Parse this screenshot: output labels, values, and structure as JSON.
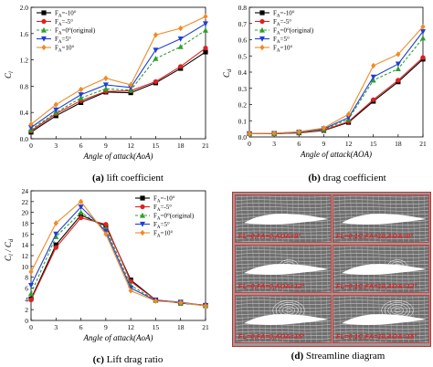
{
  "chart_data": [
    {
      "id": "a",
      "type": "line",
      "caption_letter": "(a)",
      "caption_text": " lift coefficient",
      "xlabel": "Angle of attack(AoA)",
      "ylabel": "Cl",
      "x": [
        0,
        3,
        6,
        9,
        12,
        15,
        18,
        21
      ],
      "xlim": [
        0,
        21
      ],
      "ylim": [
        0,
        2.0
      ],
      "yticks": [
        "0.0",
        "0.4",
        "0.8",
        "1.2",
        "1.6",
        "2.0"
      ],
      "yticks_values": [
        0,
        0.4,
        0.8,
        1.2,
        1.6,
        2.0
      ],
      "series": [
        {
          "name": "FA=-10°",
          "color": "#000000",
          "dash": false,
          "marker": "square",
          "values": [
            0.1,
            0.35,
            0.55,
            0.71,
            0.7,
            0.85,
            1.07,
            1.32
          ]
        },
        {
          "name": "FA=-5°",
          "color": "#e02020",
          "dash": false,
          "marker": "circle",
          "values": [
            0.12,
            0.38,
            0.58,
            0.72,
            0.73,
            0.87,
            1.1,
            1.38
          ]
        },
        {
          "name": "FA=0°(original)",
          "color": "#2ca02c",
          "dash": true,
          "marker": "triangle",
          "values": [
            0.14,
            0.4,
            0.62,
            0.76,
            0.74,
            1.22,
            1.4,
            1.65
          ]
        },
        {
          "name": "FA=5°",
          "color": "#1f3fd6",
          "dash": false,
          "marker": "triangle-down",
          "values": [
            0.17,
            0.44,
            0.67,
            0.82,
            0.78,
            1.35,
            1.52,
            1.75
          ]
        },
        {
          "name": "FA=10°",
          "color": "#f08a24",
          "dash": false,
          "marker": "diamond",
          "values": [
            0.22,
            0.52,
            0.75,
            0.92,
            0.82,
            1.58,
            1.68,
            1.86
          ]
        }
      ]
    },
    {
      "id": "b",
      "type": "line",
      "caption_letter": "(b)",
      "caption_text": " drag coefficient",
      "xlabel": "Angle of attack(AOA)",
      "ylabel": "Cd",
      "x": [
        0,
        3,
        6,
        9,
        12,
        15,
        18,
        21
      ],
      "xlim": [
        0,
        21
      ],
      "ylim": [
        0,
        0.8
      ],
      "yticks": [
        "0.0",
        "0.1",
        "0.2",
        "0.3",
        "0.4",
        "0.5",
        "0.6",
        "0.7",
        "0.8"
      ],
      "yticks_values": [
        0,
        0.1,
        0.2,
        0.3,
        0.4,
        0.5,
        0.6,
        0.7,
        0.8
      ],
      "series": [
        {
          "name": "FA=-10°",
          "color": "#000000",
          "dash": false,
          "marker": "square",
          "values": [
            0.02,
            0.02,
            0.025,
            0.04,
            0.09,
            0.22,
            0.34,
            0.48
          ]
        },
        {
          "name": "FA=-5°",
          "color": "#e02020",
          "dash": false,
          "marker": "circle",
          "values": [
            0.02,
            0.02,
            0.026,
            0.042,
            0.095,
            0.23,
            0.35,
            0.49
          ]
        },
        {
          "name": "FA=0°(original)",
          "color": "#2ca02c",
          "dash": true,
          "marker": "triangle",
          "values": [
            0.02,
            0.021,
            0.028,
            0.045,
            0.11,
            0.35,
            0.42,
            0.61
          ]
        },
        {
          "name": "FA=5°",
          "color": "#1f3fd6",
          "dash": false,
          "marker": "triangle-down",
          "values": [
            0.02,
            0.022,
            0.03,
            0.05,
            0.12,
            0.37,
            0.45,
            0.65
          ]
        },
        {
          "name": "FA=10°",
          "color": "#f08a24",
          "dash": false,
          "marker": "diamond",
          "values": [
            0.021,
            0.023,
            0.032,
            0.055,
            0.14,
            0.44,
            0.51,
            0.68
          ]
        }
      ]
    },
    {
      "id": "c",
      "type": "line",
      "caption_letter": "(c)",
      "caption_text": " Lift drag ratio",
      "xlabel": "Angle of attack(AoA)",
      "ylabel": "Cl / Cd",
      "x": [
        0,
        3,
        6,
        9,
        12,
        15,
        18,
        21
      ],
      "xlim": [
        0,
        21
      ],
      "ylim": [
        0,
        24
      ],
      "yticks": [
        "0",
        "2",
        "4",
        "6",
        "8",
        "10",
        "12",
        "14",
        "16",
        "18",
        "20",
        "22",
        "24"
      ],
      "yticks_values": [
        0,
        2,
        4,
        6,
        8,
        10,
        12,
        14,
        16,
        18,
        20,
        22,
        24
      ],
      "series": [
        {
          "name": "FA=-10°",
          "color": "#000000",
          "dash": false,
          "marker": "square",
          "values": [
            4.0,
            14.0,
            19.5,
            17.5,
            7.5,
            3.8,
            3.2,
            2.8
          ]
        },
        {
          "name": "FA=-5°",
          "color": "#e02020",
          "dash": false,
          "marker": "circle",
          "values": [
            3.8,
            13.5,
            19.0,
            17.8,
            7.2,
            3.8,
            3.3,
            2.8
          ]
        },
        {
          "name": "FA=0°(original)",
          "color": "#2ca02c",
          "dash": true,
          "marker": "triangle",
          "values": [
            5.0,
            15.5,
            20.0,
            17.0,
            6.5,
            3.7,
            3.3,
            2.7
          ]
        },
        {
          "name": "FA=5°",
          "color": "#1f3fd6",
          "dash": false,
          "marker": "triangle-down",
          "values": [
            6.5,
            16.0,
            21.0,
            16.5,
            6.0,
            3.7,
            3.4,
            2.7
          ]
        },
        {
          "name": "FA=10°",
          "color": "#f08a24",
          "dash": false,
          "marker": "diamond",
          "values": [
            9.0,
            18.0,
            22.0,
            16.0,
            5.5,
            3.6,
            3.3,
            2.7
          ]
        }
      ]
    }
  ],
  "streamline": {
    "caption_letter": "(d)",
    "caption_text": " Streamline diagram",
    "panels": [
      {
        "label": "FL=0,FA=0,AOA=9°"
      },
      {
        "label": "FL=0.1C,FA=10,AOA=9°"
      },
      {
        "label": "FL=0,FA=0,AOA=12°"
      },
      {
        "label": "FL=0.1C,FA=10,AOA=12°"
      },
      {
        "label": "FL=0,FA=0,AOA=15°"
      },
      {
        "label": "FL=0.1C,FA=10,AOA=15°"
      }
    ]
  }
}
